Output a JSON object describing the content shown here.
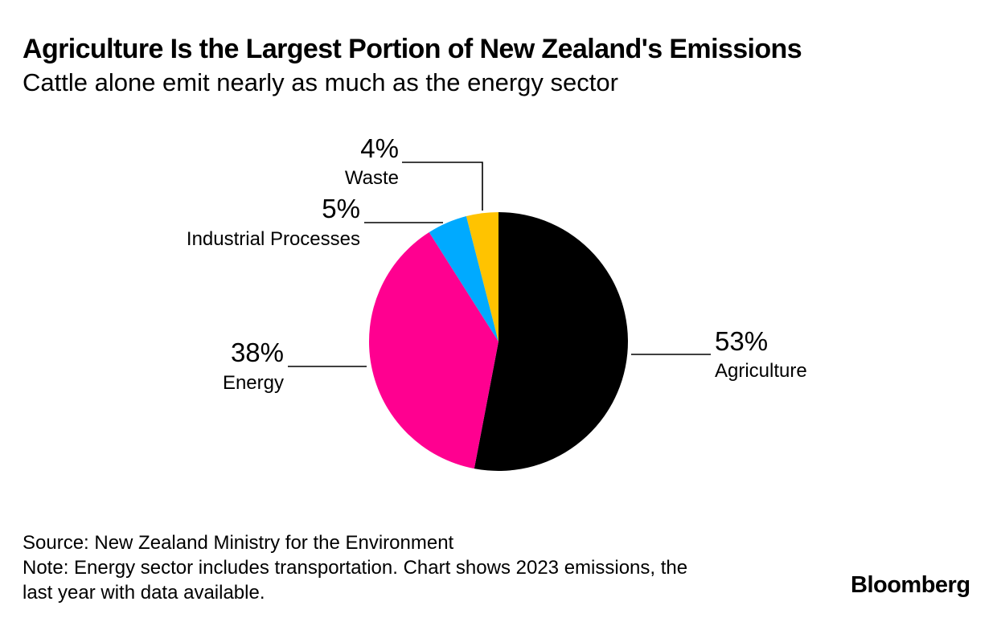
{
  "title": "Agriculture Is the Largest Portion of New Zealand's Emissions",
  "subtitle": "Cattle alone emit nearly as much as the energy sector",
  "chart_data": {
    "type": "pie",
    "title": "Agriculture Is the Largest Portion of New Zealand's Emissions",
    "subtitle": "Cattle alone emit nearly as much as the energy sector",
    "unit": "%",
    "slices": [
      {
        "label": "Agriculture",
        "value": 53,
        "value_label": "53%",
        "color": "#000000"
      },
      {
        "label": "Energy",
        "value": 38,
        "value_label": "38%",
        "color": "#ff0090"
      },
      {
        "label": "Industrial Processes",
        "value": 5,
        "value_label": "5%",
        "color": "#00aaff"
      },
      {
        "label": "Waste",
        "value": 4,
        "value_label": "4%",
        "color": "#ffc300"
      }
    ]
  },
  "footer": {
    "source": "Source: New Zealand Ministry for the Environment",
    "note_line1": "Note: Energy sector includes transportation. Chart shows 2023 emissions, the",
    "note_line2": "last year with data available."
  },
  "logo": "Bloomberg"
}
